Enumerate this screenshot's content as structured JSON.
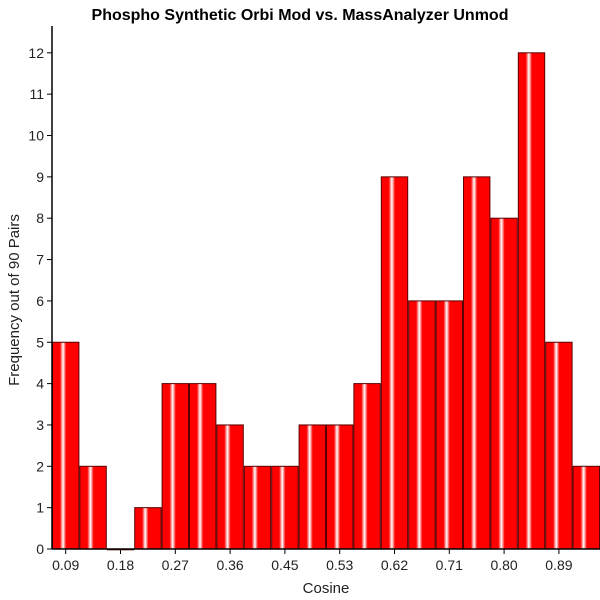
{
  "chart_data": {
    "type": "bar",
    "title": "Phospho Synthetic Orbi Mod vs. MassAnalyzer Unmod",
    "xlabel": "Cosine",
    "ylabel": "Frequency out of 90 Pairs",
    "x_ticks": [
      "0.09",
      "0.18",
      "0.27",
      "0.36",
      "0.45",
      "0.53",
      "0.62",
      "0.71",
      "0.80",
      "0.89"
    ],
    "y_ticks": [
      "0",
      "1",
      "2",
      "3",
      "4",
      "5",
      "6",
      "7",
      "8",
      "9",
      "10",
      "11",
      "12"
    ],
    "values": [
      5,
      2,
      0,
      1,
      4,
      4,
      3,
      2,
      2,
      3,
      3,
      4,
      9,
      6,
      6,
      9,
      8,
      12,
      5,
      2
    ],
    "ylim": [
      0,
      12.6
    ],
    "grid": false,
    "bar_color": "#ff0000",
    "bar_highlight": "#ffffff",
    "bar_edge": "#5a0000"
  }
}
